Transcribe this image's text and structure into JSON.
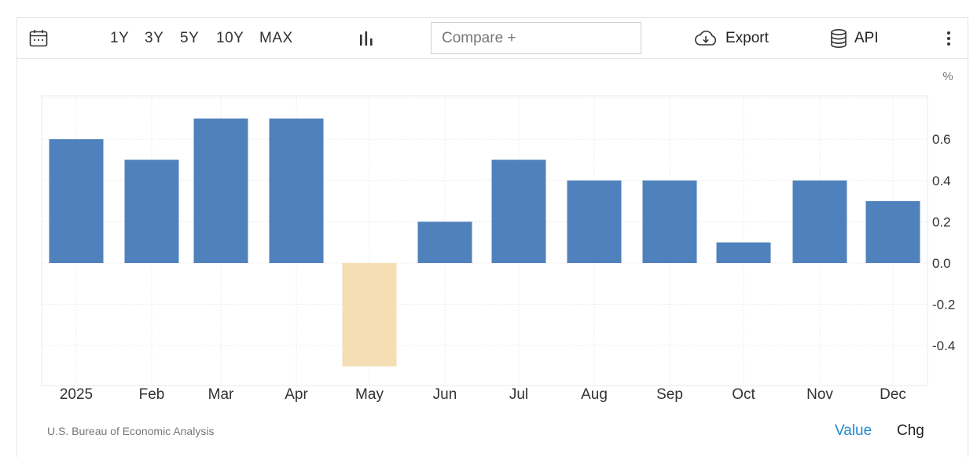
{
  "toolbar": {
    "ranges": [
      "1Y",
      "3Y",
      "5Y",
      "10Y",
      "MAX"
    ],
    "compare_placeholder": "Compare +",
    "export_label": "Export",
    "api_label": "API"
  },
  "footer": {
    "source": "U.S. Bureau of Economic Analysis",
    "value_label": "Value",
    "chg_label": "Chg"
  },
  "colors": {
    "positive": "#4f81bd",
    "negative": "#f5deb3",
    "active_toggle": "#1e88d2"
  },
  "chart_data": {
    "type": "bar",
    "categories": [
      "2025",
      "Feb",
      "Mar",
      "Apr",
      "May",
      "Jun",
      "Jul",
      "Aug",
      "Sep",
      "Oct",
      "Nov",
      "Dec"
    ],
    "values": [
      0.6,
      0.5,
      0.7,
      0.7,
      -0.5,
      0.2,
      0.5,
      0.4,
      0.4,
      0.1,
      0.4,
      0.3
    ],
    "unit": "%",
    "yticks": [
      0.6,
      0.4,
      0.2,
      0.0,
      -0.2,
      -0.4
    ],
    "ytick_labels": [
      "0.6",
      "0.4",
      "0.2",
      "0.0",
      "-0.2",
      "-0.4"
    ],
    "ylim": [
      -0.6,
      0.8
    ],
    "axis_side": "right",
    "grid": true
  }
}
